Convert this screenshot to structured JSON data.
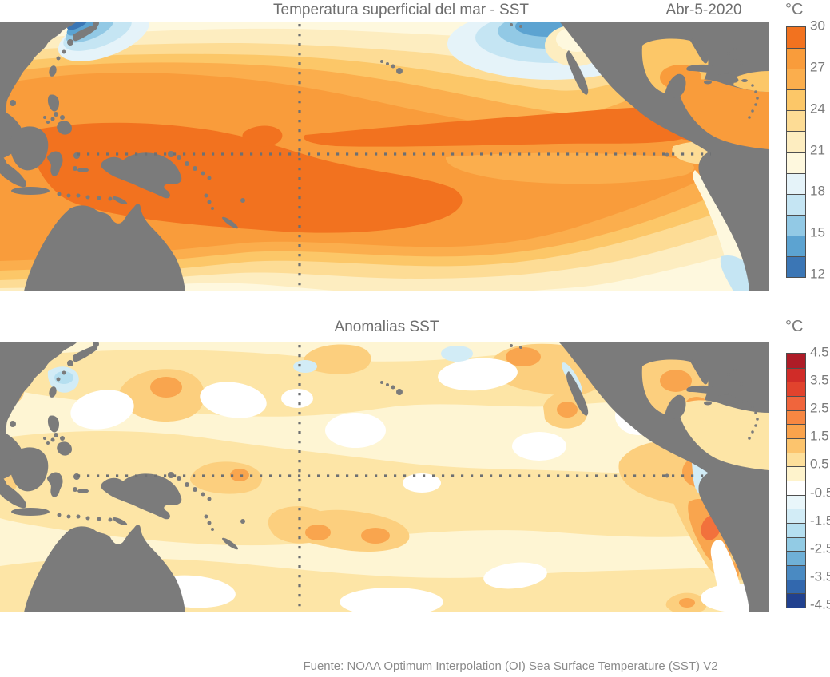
{
  "page": {
    "background": "#ffffff"
  },
  "top_panel": {
    "title": "Temperatura superficial del mar - SST",
    "date": "Abr-5-2020",
    "colorbar": {
      "unit": "°C",
      "tick_labels": [
        "30",
        "27",
        "24",
        "21",
        "18",
        "15",
        "12"
      ],
      "segment_colors": [
        "#F2721F",
        "#F99C3B",
        "#FBAE4D",
        "#FCC768",
        "#FDDC95",
        "#FDEDC0",
        "#FEF8DE",
        "#E5F3F9",
        "#C5E5F3",
        "#92C9E5",
        "#5CA3D1",
        "#3B76B5"
      ]
    }
  },
  "bottom_panel": {
    "title": "Anomalias SST",
    "colorbar": {
      "unit": "°C",
      "tick_labels": [
        "4.5",
        "3.5",
        "2.5",
        "1.5",
        "0.5",
        "-0.5",
        "-1.5",
        "-2.5",
        "-3.5",
        "-4.5"
      ],
      "segment_colors": [
        "#AE1C27",
        "#D02C28",
        "#E1432D",
        "#F0653C",
        "#F78742",
        "#FAA34C",
        "#FCC46D",
        "#FDDF9B",
        "#FEF3CC",
        "#FFFFFF",
        "#E9F6FA",
        "#D2ECF6",
        "#B5DFF0",
        "#92CBE4",
        "#6FB0D7",
        "#4A8AC2",
        "#3268AE",
        "#21418F"
      ]
    }
  },
  "footer": {
    "source": "Fuente: NOAA Optimum Interpolation (OI) Sea Surface Temperature (SST) V2"
  },
  "map_style": {
    "land_color": "#7b7b7b",
    "gridline_color": "#6e7072",
    "gridlines": "dotted equator line and dotted 180° meridian on both panels"
  },
  "chart_data": [
    {
      "type": "heatmap",
      "title": "Temperatura superficial del mar - SST",
      "date": "Abr-5-2020",
      "region": "Pacific Ocean basin (Asia/Australia to the Americas)",
      "units": "°C",
      "scale": {
        "min": 12,
        "max": 30,
        "step": 1.5,
        "tick_labels": [
          30,
          27,
          24,
          21,
          18,
          15,
          12
        ]
      },
      "legend_position": "right",
      "features": [
        {
          "name": "western pacific warm pool",
          "approx_value_c": "28.5 to 30"
        },
        {
          "name": "equatorial band and caribbean",
          "approx_value_c": "27 to 30"
        },
        {
          "name": "north pacific mid-latitudes",
          "approx_value_c": "18 to 24"
        },
        {
          "name": "kuroshio-oyashio region off japan",
          "approx_value_c": "12 to 18"
        },
        {
          "name": "gulf of alaska / ne pacific patch",
          "approx_value_c": "13.5 to 18"
        },
        {
          "name": "peru-chile coastal upwelling tongue",
          "approx_value_c": "16.5 to 24"
        },
        {
          "name": "south pacific subtropics",
          "approx_value_c": "19.5 to 27"
        }
      ]
    },
    {
      "type": "heatmap",
      "title": "Anomalias SST",
      "region": "Pacific Ocean basin (same extent as SST panel)",
      "units": "°C",
      "scale": {
        "min": -4.5,
        "max": 4.5,
        "step": 0.5,
        "tick_labels": [
          4.5,
          3.5,
          2.5,
          1.5,
          0.5,
          -0.5,
          -1.5,
          -2.5,
          -3.5,
          -4.5
        ]
      },
      "legend_position": "right",
      "features": [
        {
          "name": "basin-wide background anomaly",
          "approx_value_c": "0 to +1"
        },
        {
          "name": "peru coast warm anomaly core",
          "approx_value_c": "+2 to +3"
        },
        {
          "name": "gulf of mexico warm anomaly",
          "approx_value_c": "+1.5 to +2.5"
        },
        {
          "name": "central-east equatorial warm patch",
          "approx_value_c": "+1.5 to +2"
        },
        {
          "name": "scattered near-zero (white) patches",
          "approx_value_c": "-0.5 to 0"
        },
        {
          "name": "ecuador-colombia coastal cool anomaly",
          "approx_value_c": "-0.5 to -1"
        },
        {
          "name": "nw pacific near japan cool anomaly",
          "approx_value_c": "-0.5 to -1"
        }
      ]
    }
  ]
}
